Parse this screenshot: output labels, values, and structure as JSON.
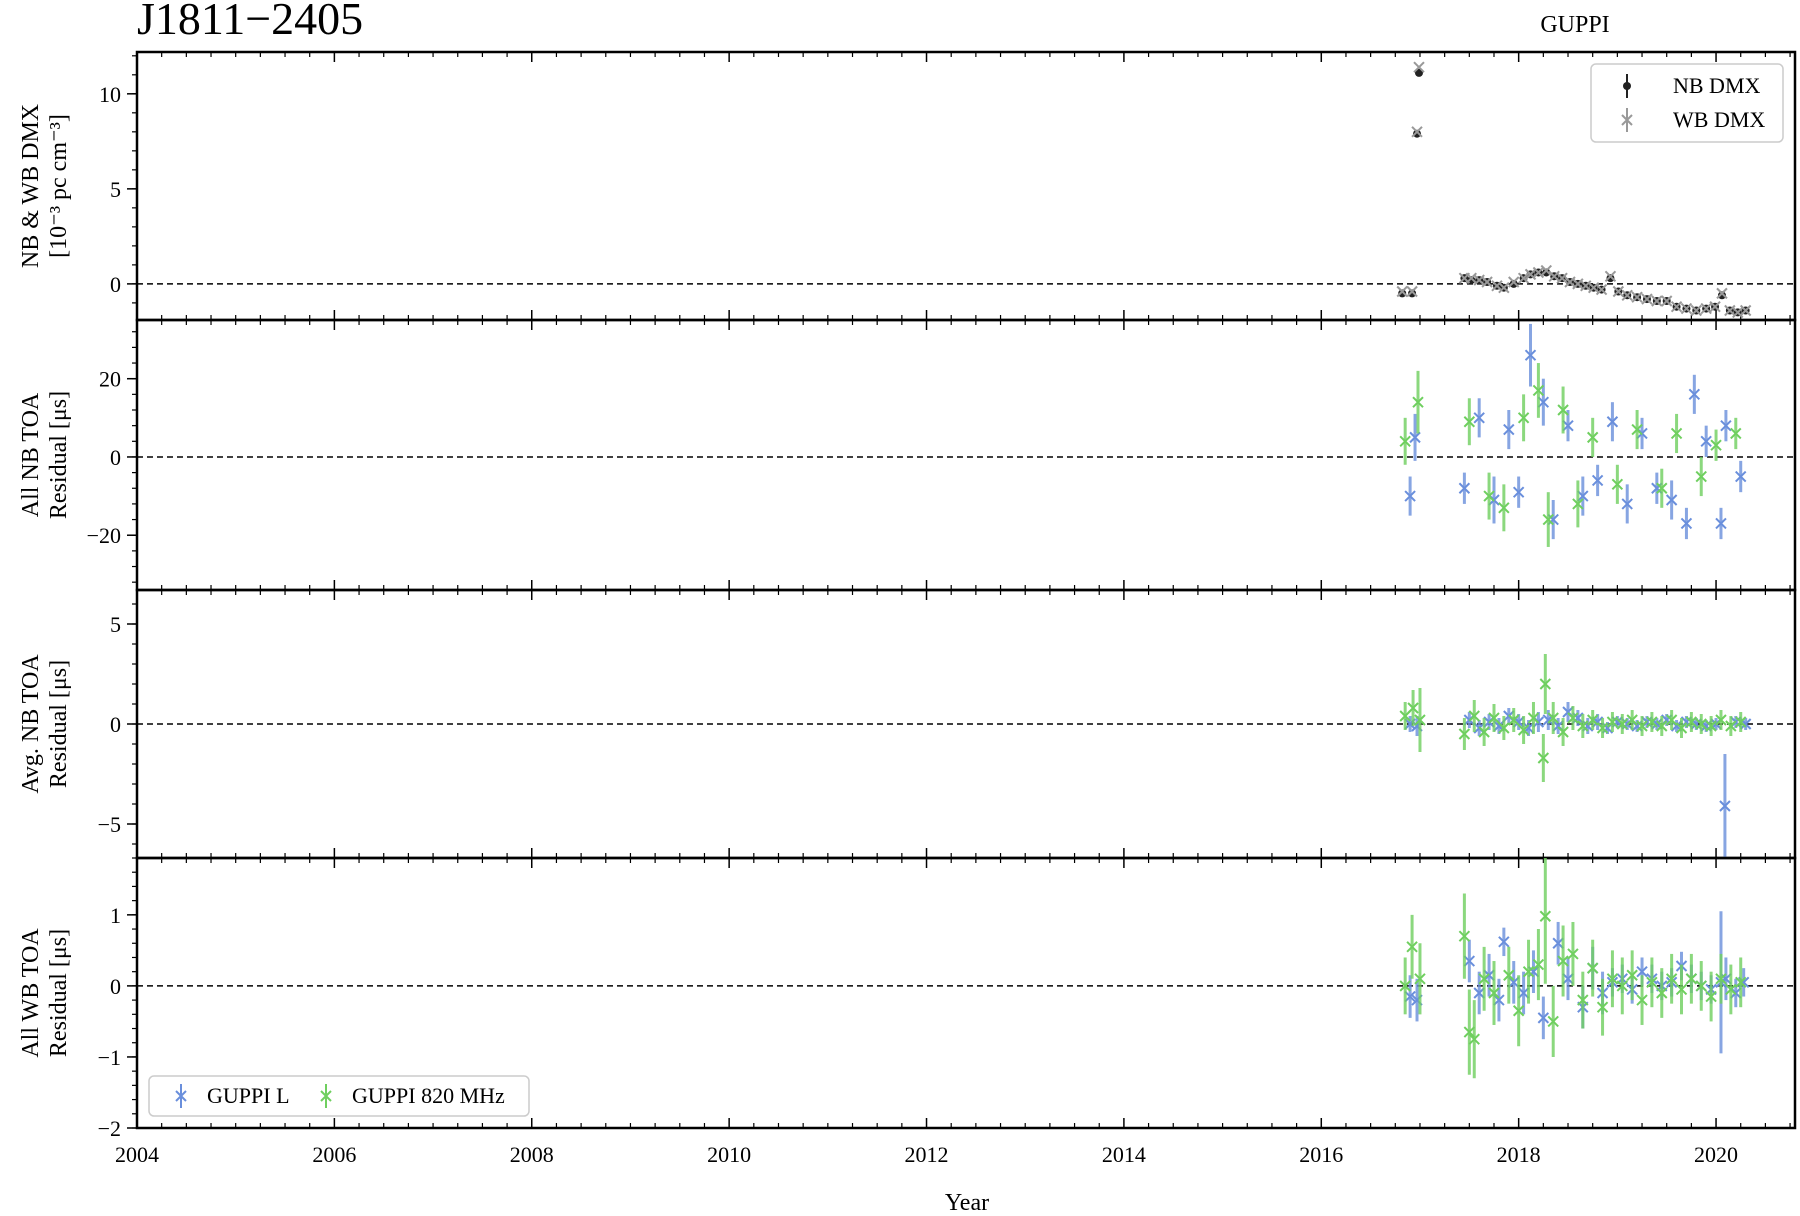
{
  "figure": {
    "title": "J1811−2405",
    "subtitle": "GUPPI",
    "xlabel": "Year"
  },
  "chart_data": {
    "type": "scatter",
    "x_unit": "year",
    "xlim": [
      2004,
      2020.8
    ],
    "x_ticks": [
      2004,
      2006,
      2008,
      2010,
      2012,
      2014,
      2016,
      2018,
      2020
    ],
    "panels": [
      {
        "id": "dmx",
        "ylabel": [
          "NB & WB DMX",
          "[10⁻³ pc cm⁻³]"
        ],
        "ylim": [
          -1.9,
          12.2
        ],
        "y_ticks": [
          0,
          5,
          10
        ],
        "zero_line": true,
        "legend": {
          "position": "top-right",
          "entries": [
            {
              "label": "NB DMX",
              "marker": "dot",
              "color": "#222222"
            },
            {
              "label": "WB DMX",
              "marker": "x",
              "color": "#999999"
            }
          ]
        },
        "series": [
          {
            "name": "NB DMX",
            "color": "#222222",
            "marker": "dot",
            "x": [
              2016.82,
              2016.92,
              2016.97,
              2016.99,
              2017.45,
              2017.52,
              2017.6,
              2017.68,
              2017.78,
              2017.85,
              2017.95,
              2018.05,
              2018.12,
              2018.2,
              2018.28,
              2018.36,
              2018.44,
              2018.52,
              2018.6,
              2018.68,
              2018.76,
              2018.84,
              2018.93,
              2019.01,
              2019.1,
              2019.2,
              2019.3,
              2019.4,
              2019.5,
              2019.6,
              2019.7,
              2019.8,
              2019.9,
              2019.99,
              2020.06,
              2020.14,
              2020.22,
              2020.3
            ],
            "y": [
              -0.5,
              -0.5,
              7.9,
              11.1,
              0.3,
              0.2,
              0.2,
              0.1,
              -0.1,
              -0.2,
              0.0,
              0.3,
              0.5,
              0.6,
              0.6,
              0.4,
              0.3,
              0.1,
              0.0,
              -0.1,
              -0.2,
              -0.3,
              0.3,
              -0.4,
              -0.6,
              -0.7,
              -0.8,
              -0.9,
              -0.9,
              -1.2,
              -1.3,
              -1.4,
              -1.3,
              -1.2,
              -0.6,
              -1.4,
              -1.5,
              -1.4
            ]
          },
          {
            "name": "WB DMX",
            "color": "#999999",
            "marker": "x",
            "x": [
              2016.82,
              2016.92,
              2016.97,
              2016.99,
              2017.45,
              2017.52,
              2017.6,
              2017.68,
              2017.78,
              2017.85,
              2017.95,
              2018.05,
              2018.12,
              2018.2,
              2018.28,
              2018.36,
              2018.44,
              2018.52,
              2018.6,
              2018.68,
              2018.76,
              2018.84,
              2018.93,
              2019.01,
              2019.1,
              2019.2,
              2019.3,
              2019.4,
              2019.5,
              2019.6,
              2019.7,
              2019.8,
              2019.9,
              2019.99,
              2020.06,
              2020.14,
              2020.22,
              2020.3
            ],
            "y": [
              -0.4,
              -0.4,
              8.0,
              11.4,
              0.3,
              0.3,
              0.2,
              0.1,
              -0.1,
              -0.2,
              0.1,
              0.3,
              0.5,
              0.6,
              0.7,
              0.4,
              0.3,
              0.1,
              0.0,
              -0.1,
              -0.2,
              -0.3,
              0.4,
              -0.4,
              -0.6,
              -0.7,
              -0.8,
              -0.9,
              -0.9,
              -1.2,
              -1.3,
              -1.4,
              -1.3,
              -1.2,
              -0.5,
              -1.4,
              -1.5,
              -1.4
            ]
          }
        ]
      },
      {
        "id": "nb-all",
        "ylabel": [
          "All NB TOA",
          "Residual [μs]"
        ],
        "ylim": [
          -34,
          35
        ],
        "y_ticks": [
          -20,
          0,
          20
        ],
        "zero_line": true,
        "series": [
          {
            "name": "GUPPI L",
            "color": "#6a8fdc",
            "marker": "x",
            "x": [
              2016.9,
              2016.95,
              2017.45,
              2017.6,
              2017.75,
              2017.9,
              2018.0,
              2018.12,
              2018.25,
              2018.35,
              2018.5,
              2018.65,
              2018.8,
              2018.95,
              2019.1,
              2019.25,
              2019.4,
              2019.55,
              2019.7,
              2019.78,
              2019.9,
              2020.05,
              2020.1,
              2020.25
            ],
            "y": [
              -10,
              5,
              -8,
              10,
              -11,
              7,
              -9,
              26,
              14,
              -16,
              8,
              -10,
              -6,
              9,
              -12,
              6,
              -8,
              -11,
              -17,
              16,
              4,
              -17,
              8,
              -5
            ],
            "yerr": [
              5,
              6,
              4,
              5,
              6,
              5,
              4,
              8,
              6,
              5,
              4,
              5,
              4,
              5,
              5,
              4,
              4,
              5,
              4,
              5,
              4,
              4,
              4,
              4
            ]
          },
          {
            "name": "GUPPI 820 MHz",
            "color": "#6fcf5f",
            "marker": "x",
            "x": [
              2016.85,
              2016.98,
              2017.5,
              2017.7,
              2017.85,
              2018.05,
              2018.2,
              2018.3,
              2018.45,
              2018.6,
              2018.75,
              2019.0,
              2019.2,
              2019.45,
              2019.6,
              2019.85,
              2020.0,
              2020.2
            ],
            "y": [
              4,
              14,
              9,
              -10,
              -13,
              10,
              17,
              -16,
              12,
              -12,
              5,
              -7,
              7,
              -8,
              6,
              -5,
              3,
              6
            ],
            "yerr": [
              6,
              8,
              6,
              6,
              6,
              6,
              7,
              7,
              6,
              6,
              5,
              5,
              5,
              5,
              5,
              5,
              4,
              4
            ]
          }
        ]
      },
      {
        "id": "nb-avg",
        "ylabel": [
          "Avg. NB TOA",
          "Residual [μs]"
        ],
        "ylim": [
          -6.7,
          6.7
        ],
        "y_ticks": [
          -5,
          0,
          5
        ],
        "zero_line": true,
        "series": [
          {
            "name": "GUPPI L",
            "color": "#6a8fdc",
            "marker": "x",
            "x": [
              2016.9,
              2016.97,
              2017.5,
              2017.6,
              2017.7,
              2017.8,
              2017.9,
              2018.0,
              2018.1,
              2018.2,
              2018.3,
              2018.4,
              2018.5,
              2018.6,
              2018.7,
              2018.8,
              2018.9,
              2019.0,
              2019.1,
              2019.2,
              2019.3,
              2019.4,
              2019.5,
              2019.6,
              2019.7,
              2019.8,
              2019.9,
              2020.0,
              2020.09,
              2020.2,
              2020.3
            ],
            "y": [
              0.0,
              -0.1,
              0.2,
              -0.2,
              0.1,
              -0.1,
              0.4,
              0.1,
              -0.2,
              0.1,
              0.2,
              -0.1,
              0.6,
              0.3,
              -0.1,
              0.1,
              -0.2,
              0.1,
              0.0,
              -0.1,
              0.1,
              0.0,
              0.2,
              -0.1,
              0.1,
              0.0,
              -0.1,
              0.0,
              -4.1,
              0.1,
              0.0
            ],
            "yerr": [
              0.4,
              0.5,
              0.4,
              0.4,
              0.4,
              0.4,
              0.4,
              0.4,
              0.4,
              0.5,
              0.5,
              0.4,
              0.5,
              0.4,
              0.4,
              0.4,
              0.3,
              0.3,
              0.3,
              0.3,
              0.3,
              0.3,
              0.3,
              0.3,
              0.3,
              0.3,
              0.3,
              0.3,
              2.6,
              0.3,
              0.3
            ]
          },
          {
            "name": "GUPPI 820 MHz",
            "color": "#6fcf5f",
            "marker": "x",
            "x": [
              2016.85,
              2016.93,
              2017.0,
              2017.45,
              2017.55,
              2017.65,
              2017.75,
              2017.85,
              2017.95,
              2018.05,
              2018.15,
              2018.25,
              2018.27,
              2018.35,
              2018.45,
              2018.55,
              2018.65,
              2018.75,
              2018.85,
              2018.95,
              2019.05,
              2019.15,
              2019.25,
              2019.35,
              2019.45,
              2019.55,
              2019.65,
              2019.75,
              2019.85,
              2019.95,
              2020.05,
              2020.15,
              2020.25
            ],
            "y": [
              0.4,
              0.8,
              0.2,
              -0.5,
              0.4,
              -0.4,
              0.3,
              -0.2,
              0.2,
              -0.3,
              0.3,
              -1.7,
              2.0,
              0.3,
              -0.4,
              0.3,
              -0.1,
              0.2,
              -0.2,
              0.1,
              0.0,
              0.2,
              -0.1,
              0.1,
              -0.1,
              0.2,
              -0.2,
              0.1,
              0.0,
              -0.1,
              0.2,
              -0.1,
              0.1
            ],
            "yerr": [
              0.7,
              0.9,
              1.6,
              0.8,
              0.8,
              0.7,
              0.7,
              0.6,
              0.6,
              0.7,
              0.8,
              1.2,
              1.5,
              0.8,
              0.7,
              0.6,
              0.6,
              0.5,
              0.5,
              0.5,
              0.5,
              0.5,
              0.5,
              0.5,
              0.5,
              0.5,
              0.5,
              0.5,
              0.5,
              0.5,
              0.5,
              0.5,
              0.5
            ]
          }
        ]
      },
      {
        "id": "wb-all",
        "ylabel": [
          "All WB TOA",
          "Residual [μs]"
        ],
        "ylim": [
          -2.0,
          1.8
        ],
        "y_ticks": [
          -2,
          -1,
          0,
          1
        ],
        "zero_line": true,
        "legend": {
          "position": "bottom-left",
          "entries": [
            {
              "label": "GUPPI L",
              "marker": "x",
              "color": "#6a8fdc"
            },
            {
              "label": "GUPPI 820 MHz",
              "marker": "x",
              "color": "#6fcf5f"
            }
          ]
        },
        "series": [
          {
            "name": "GUPPI L",
            "color": "#6a8fdc",
            "marker": "x",
            "x": [
              2016.9,
              2016.97,
              2017.5,
              2017.6,
              2017.7,
              2017.8,
              2017.85,
              2017.95,
              2018.05,
              2018.15,
              2018.25,
              2018.4,
              2018.5,
              2018.65,
              2018.75,
              2018.85,
              2018.95,
              2019.05,
              2019.15,
              2019.25,
              2019.35,
              2019.45,
              2019.55,
              2019.65,
              2019.75,
              2019.85,
              2019.95,
              2020.05,
              2020.1,
              2020.2,
              2020.28
            ],
            "y": [
              -0.15,
              -0.2,
              0.35,
              -0.1,
              0.15,
              -0.2,
              0.62,
              0.05,
              -0.1,
              0.2,
              -0.45,
              0.6,
              0.1,
              -0.3,
              0.25,
              -0.1,
              0.05,
              0.1,
              -0.05,
              0.2,
              0.1,
              0.0,
              0.05,
              0.28,
              0.1,
              0.0,
              -0.05,
              0.05,
              0.1,
              -0.1,
              0.05
            ],
            "yerr": [
              0.3,
              0.3,
              0.3,
              0.3,
              0.3,
              0.3,
              0.2,
              0.3,
              0.3,
              0.3,
              0.3,
              0.3,
              0.3,
              0.3,
              0.3,
              0.3,
              0.2,
              0.2,
              0.2,
              0.2,
              0.2,
              0.2,
              0.2,
              0.2,
              0.2,
              0.2,
              0.2,
              1.0,
              0.3,
              0.2,
              0.2
            ]
          },
          {
            "name": "GUPPI 820 MHz",
            "color": "#6fcf5f",
            "marker": "x",
            "x": [
              2016.85,
              2016.92,
              2017.0,
              2017.45,
              2017.5,
              2017.55,
              2017.65,
              2017.75,
              2017.9,
              2018.0,
              2018.1,
              2018.2,
              2018.27,
              2018.35,
              2018.45,
              2018.55,
              2018.65,
              2018.75,
              2018.85,
              2018.95,
              2019.05,
              2019.15,
              2019.25,
              2019.35,
              2019.45,
              2019.55,
              2019.65,
              2019.75,
              2019.85,
              2019.95,
              2020.05,
              2020.15,
              2020.25
            ],
            "y": [
              0.0,
              0.55,
              0.1,
              0.7,
              -0.65,
              -0.75,
              0.1,
              -0.1,
              0.15,
              -0.35,
              0.2,
              0.3,
              0.98,
              -0.5,
              0.35,
              0.45,
              -0.2,
              0.25,
              -0.3,
              0.1,
              0.0,
              0.15,
              -0.2,
              0.05,
              -0.1,
              0.1,
              -0.05,
              0.1,
              0.0,
              -0.15,
              0.1,
              -0.05,
              0.05
            ],
            "yerr": [
              0.4,
              0.45,
              0.5,
              0.6,
              0.6,
              0.55,
              0.45,
              0.45,
              0.4,
              0.5,
              0.45,
              0.5,
              0.95,
              0.5,
              0.5,
              0.45,
              0.4,
              0.4,
              0.4,
              0.4,
              0.4,
              0.35,
              0.35,
              0.35,
              0.35,
              0.35,
              0.35,
              0.35,
              0.35,
              0.35,
              0.35,
              0.35,
              0.35
            ]
          }
        ]
      }
    ]
  }
}
